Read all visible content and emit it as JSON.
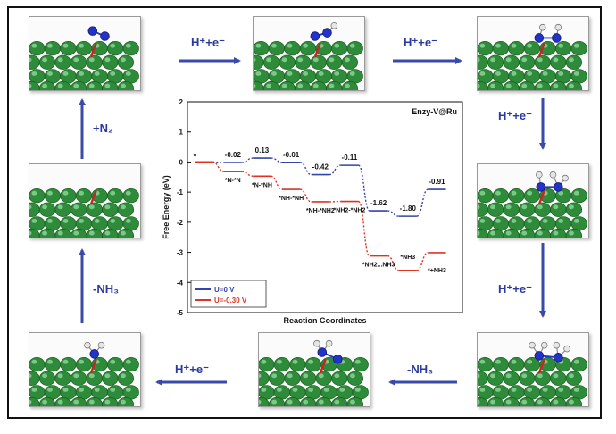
{
  "arrows": {
    "a1": {
      "text": "H⁺+e⁻"
    },
    "a2": {
      "text": "H⁺+e⁻"
    },
    "a3": {
      "text": "H⁺+e⁻"
    },
    "a4": {
      "text": "H⁺+e⁻"
    },
    "a5": {
      "text": "-NH₃"
    },
    "a6": {
      "text": "H⁺+e⁻"
    },
    "a7": {
      "text": "-NH₃"
    },
    "a8": {
      "text": "+N₂"
    }
  },
  "colors": {
    "arrow": "#3a4aa8",
    "metal": "#2e8b3a",
    "nitrogen": "#2233cc",
    "hydrogen": "#e6e6e6",
    "bond": "#cc2222"
  },
  "chart_data": {
    "type": "line",
    "title": "Enzy-V@Ru",
    "xlabel": "Reaction Coordinates",
    "ylabel": "Free Energy (eV)",
    "ylim": [
      -5,
      2
    ],
    "yticks": [
      "2",
      "1",
      "0",
      "-1",
      "-2",
      "-3",
      "-4",
      "-5"
    ],
    "x": [
      "*",
      "*N-*N",
      "*N-*NH",
      "*NH-*NH",
      "*NH-*NH2",
      "*NH2-*NH2",
      "*NH2...NH3",
      "*NH3",
      "*+NH3"
    ],
    "series": [
      {
        "name": "U=0 V",
        "color": "#3344aa",
        "values": [
          0,
          -0.02,
          0.13,
          -0.01,
          -0.42,
          -0.11,
          -1.62,
          -1.8,
          -0.91
        ]
      },
      {
        "name": "U=-0.30 V",
        "color": "#dd3322",
        "values": [
          0,
          -0.32,
          -0.47,
          -0.91,
          -1.32,
          -1.31,
          -3.12,
          -3.6,
          -3.01
        ]
      }
    ],
    "value_labels": [
      "-0.02",
      "0.13",
      "-0.01",
      "-0.42",
      "-0.11",
      "-1.62",
      "-1.80",
      "-0.91"
    ],
    "state_labels": [
      "*",
      "*N-*N",
      "*N-*NH",
      "*NH-*NH",
      "*NH-*NH2",
      "*NH2-*NH2",
      "*NH2...NH3",
      "*NH3",
      "*+NH3"
    ],
    "legend": {
      "position": "bottom-left",
      "entries": [
        "U=0 V",
        "U=-0.30 V"
      ]
    }
  }
}
